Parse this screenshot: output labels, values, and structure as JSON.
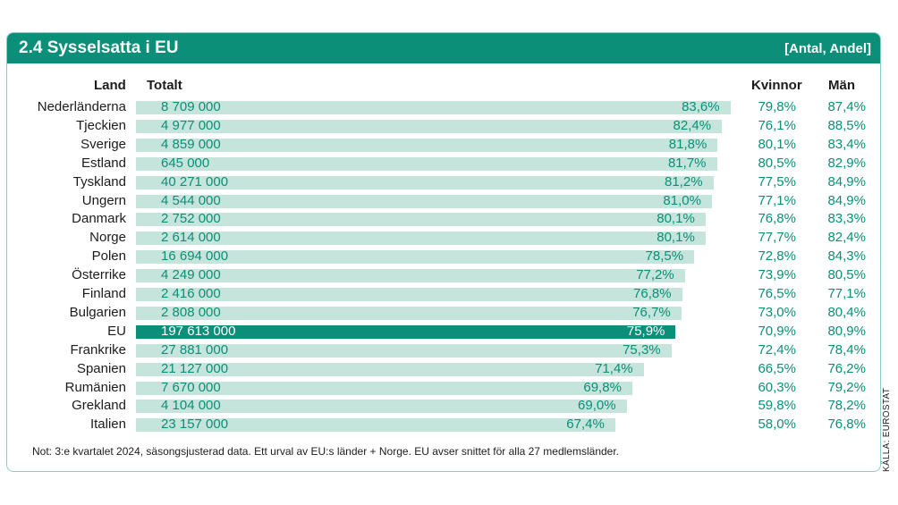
{
  "header": {
    "title": "2.4  Sysselsatta i EU",
    "unit": "[Antal, Andel]"
  },
  "columns": {
    "land": "Land",
    "totalt": "Totalt",
    "kvinnor": "Kvinnor",
    "man": "Män"
  },
  "note": "Not: 3:e kvartalet 2024, säsongsjusterad data. Ett urval av EU:s länder + Norge. EU avser snittet för alla 27 medlemsländer.",
  "source": "KÄLLA: EUROSTAT",
  "colors": {
    "accent": "#0b8f78",
    "bar": "#c5e5dc"
  },
  "chart_data": {
    "type": "bar",
    "orientation": "horizontal",
    "highlight": "EU",
    "rows": [
      {
        "country": "Nederländerna",
        "total": "8 709 000",
        "share": 83.6,
        "share_label": "83,6%",
        "women": "79,8%",
        "men": "87,4%"
      },
      {
        "country": "Tjeckien",
        "total": "4 977 000",
        "share": 82.4,
        "share_label": "82,4%",
        "women": "76,1%",
        "men": "88,5%"
      },
      {
        "country": "Sverige",
        "total": "4 859 000",
        "share": 81.8,
        "share_label": "81,8%",
        "women": "80,1%",
        "men": "83,4%"
      },
      {
        "country": "Estland",
        "total": "645 000",
        "share": 81.7,
        "share_label": "81,7%",
        "women": "80,5%",
        "men": "82,9%"
      },
      {
        "country": "Tyskland",
        "total": "40 271 000",
        "share": 81.2,
        "share_label": "81,2%",
        "women": "77,5%",
        "men": "84,9%"
      },
      {
        "country": "Ungern",
        "total": "4 544 000",
        "share": 81.0,
        "share_label": "81,0%",
        "women": "77,1%",
        "men": "84,9%"
      },
      {
        "country": "Danmark",
        "total": "2 752 000",
        "share": 80.1,
        "share_label": "80,1%",
        "women": "76,8%",
        "men": "83,3%"
      },
      {
        "country": "Norge",
        "total": "2 614 000",
        "share": 80.1,
        "share_label": "80,1%",
        "women": "77,7%",
        "men": "82,4%"
      },
      {
        "country": "Polen",
        "total": "16 694 000",
        "share": 78.5,
        "share_label": "78,5%",
        "women": "72,8%",
        "men": "84,3%"
      },
      {
        "country": "Österrike",
        "total": "4 249 000",
        "share": 77.2,
        "share_label": "77,2%",
        "women": "73,9%",
        "men": "80,5%"
      },
      {
        "country": "Finland",
        "total": "2 416 000",
        "share": 76.8,
        "share_label": "76,8%",
        "women": "76,5%",
        "men": "77,1%"
      },
      {
        "country": "Bulgarien",
        "total": "2 808 000",
        "share": 76.7,
        "share_label": "76,7%",
        "women": "73,0%",
        "men": "80,4%"
      },
      {
        "country": "EU",
        "total": "197 613 000",
        "share": 75.9,
        "share_label": "75,9%",
        "women": "70,9%",
        "men": "80,9%"
      },
      {
        "country": "Frankrike",
        "total": "27 881 000",
        "share": 75.3,
        "share_label": "75,3%",
        "women": "72,4%",
        "men": "78,4%"
      },
      {
        "country": "Spanien",
        "total": "21 127 000",
        "share": 71.4,
        "share_label": "71,4%",
        "women": "66,5%",
        "men": "76,2%"
      },
      {
        "country": "Rumänien",
        "total": "7 670 000",
        "share": 69.8,
        "share_label": "69,8%",
        "women": "60,3%",
        "men": "79,2%"
      },
      {
        "country": "Grekland",
        "total": "4 104 000",
        "share": 69.0,
        "share_label": "69,0%",
        "women": "59,8%",
        "men": "78,2%"
      },
      {
        "country": "Italien",
        "total": "23 157 000",
        "share": 67.4,
        "share_label": "67,4%",
        "women": "58,0%",
        "men": "76,8%"
      }
    ]
  }
}
